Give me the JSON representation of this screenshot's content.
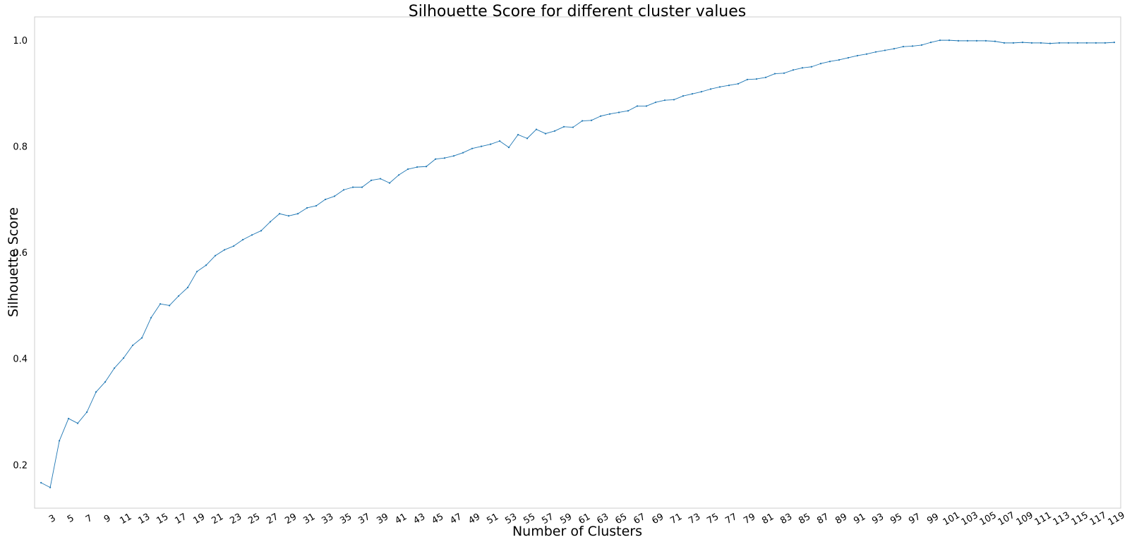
{
  "chart_data": {
    "type": "line",
    "title": "Silhouette Score for different cluster values",
    "xlabel": "Number of Clusters",
    "ylabel": "Silhouette Score",
    "xlim": [
      1.3,
      119.7
    ],
    "ylim": [
      0.118,
      1.044
    ],
    "x_ticks": [
      3,
      5,
      7,
      9,
      11,
      13,
      15,
      17,
      19,
      21,
      23,
      25,
      27,
      29,
      31,
      33,
      35,
      37,
      39,
      41,
      43,
      45,
      47,
      49,
      51,
      53,
      55,
      57,
      59,
      61,
      63,
      65,
      67,
      69,
      71,
      73,
      75,
      77,
      79,
      81,
      83,
      85,
      87,
      89,
      91,
      93,
      95,
      97,
      99,
      101,
      103,
      105,
      107,
      109,
      111,
      113,
      115,
      117,
      119
    ],
    "y_ticks": [
      0.2,
      0.4,
      0.6,
      0.8,
      1.0
    ],
    "y_tick_labels": [
      "0.2",
      "0.4",
      "0.6",
      "0.8",
      "1.0"
    ],
    "grid": false,
    "line_color": "#1f77b4",
    "series": [
      {
        "x": [
          2,
          3,
          4,
          5,
          6,
          7,
          8,
          9,
          10,
          11,
          12,
          13,
          14,
          15,
          16,
          17,
          18,
          19,
          20,
          21,
          22,
          23,
          24,
          25,
          26,
          27,
          28,
          29,
          30,
          31,
          32,
          33,
          34,
          35,
          36,
          37,
          38,
          39,
          40,
          41,
          42,
          43,
          44,
          45,
          46,
          47,
          48,
          49,
          50,
          51,
          52,
          53,
          54,
          55,
          56,
          57,
          58,
          59,
          60,
          61,
          62,
          63,
          64,
          65,
          66,
          67,
          68,
          69,
          70,
          71,
          72,
          73,
          74,
          75,
          76,
          77,
          78,
          79,
          80,
          81,
          82,
          83,
          84,
          85,
          86,
          87,
          88,
          89,
          90,
          91,
          92,
          93,
          94,
          95,
          96,
          97,
          98,
          99,
          100,
          101,
          102,
          103,
          104,
          105,
          106,
          107,
          108,
          109,
          110,
          111,
          112,
          113,
          114,
          115,
          116,
          117,
          118,
          119
        ],
        "y": [
          0.166,
          0.157,
          0.245,
          0.287,
          0.278,
          0.299,
          0.337,
          0.356,
          0.382,
          0.401,
          0.425,
          0.439,
          0.477,
          0.503,
          0.5,
          0.518,
          0.534,
          0.564,
          0.576,
          0.594,
          0.605,
          0.612,
          0.624,
          0.633,
          0.641,
          0.658,
          0.673,
          0.669,
          0.673,
          0.684,
          0.688,
          0.7,
          0.706,
          0.718,
          0.723,
          0.723,
          0.736,
          0.739,
          0.731,
          0.746,
          0.757,
          0.761,
          0.762,
          0.776,
          0.778,
          0.782,
          0.788,
          0.796,
          0.8,
          0.804,
          0.81,
          0.798,
          0.822,
          0.815,
          0.832,
          0.824,
          0.829,
          0.837,
          0.836,
          0.848,
          0.849,
          0.857,
          0.861,
          0.864,
          0.867,
          0.876,
          0.876,
          0.883,
          0.887,
          0.888,
          0.895,
          0.899,
          0.903,
          0.908,
          0.912,
          0.915,
          0.918,
          0.926,
          0.927,
          0.93,
          0.937,
          0.938,
          0.944,
          0.948,
          0.95,
          0.956,
          0.96,
          0.963,
          0.967,
          0.971,
          0.974,
          0.978,
          0.981,
          0.984,
          0.988,
          0.989,
          0.991,
          0.996,
          1.0,
          1.0,
          0.999,
          0.999,
          0.999,
          0.999,
          0.998,
          0.995,
          0.995,
          0.996,
          0.995,
          0.995,
          0.994,
          0.995,
          0.995,
          0.995,
          0.995,
          0.995,
          0.995,
          0.996
        ]
      }
    ]
  }
}
